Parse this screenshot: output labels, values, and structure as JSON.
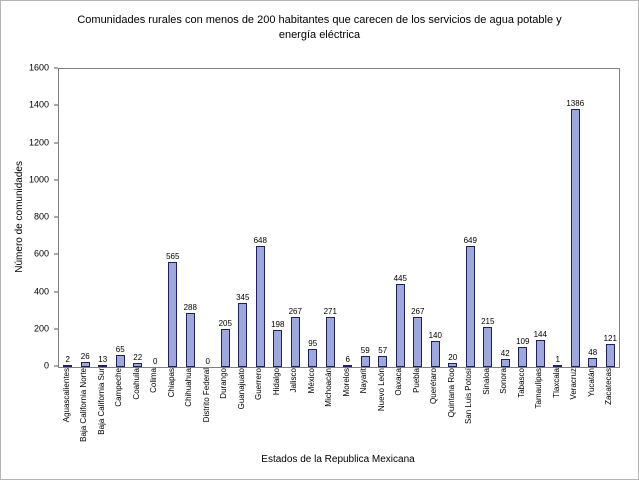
{
  "chart_data": {
    "type": "bar",
    "title": "Comunidades rurales con menos de 200 habitantes que carecen de los servicios de agua potable y energía eléctrica",
    "xlabel": "Estados de la Republica Mexicana",
    "ylabel": "Número de comunidades",
    "ylim": [
      0,
      1600
    ],
    "ytick_step": 200,
    "grid": false,
    "legend": "none",
    "bar_fill": "#9FA8DC",
    "bar_border": "#20205A",
    "categories": [
      "Aguascalientes",
      "Baja California Norte",
      "Baja California Sur",
      "Campeche",
      "Coahuila",
      "Colima",
      "Chiapas",
      "Chihuahua",
      "Distrito Federal",
      "Durango",
      "Guanajuato",
      "Guerrero",
      "Hidalgo",
      "Jalisco",
      "México",
      "Michoacán",
      "Morelos",
      "Nayarit",
      "Nuevo León",
      "Oaxaca",
      "Puebla",
      "Querétaro",
      "Quintana Roo",
      "San Luis Potosí",
      "Sinaloa",
      "Sonora",
      "Tabasco",
      "Tamaulipas",
      "Tlaxcala",
      "Veracruz",
      "Yucatán",
      "Zacatecas"
    ],
    "values": [
      2,
      26,
      13,
      65,
      22,
      0,
      565,
      288,
      0,
      205,
      345,
      648,
      198,
      267,
      95,
      271,
      6,
      59,
      57,
      445,
      267,
      140,
      20,
      649,
      215,
      42,
      109,
      144,
      1,
      1386,
      48,
      121
    ]
  }
}
